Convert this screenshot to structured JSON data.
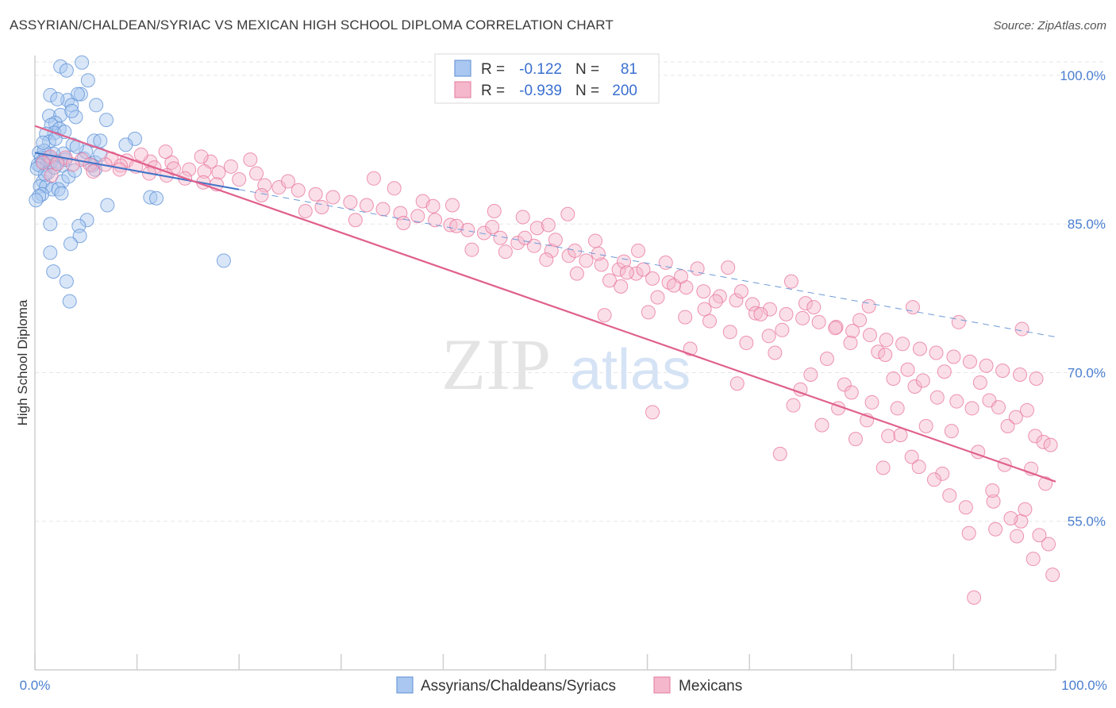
{
  "header": {
    "title": "ASSYRIAN/CHALDEAN/SYRIAC VS MEXICAN HIGH SCHOOL DIPLOMA CORRELATION CHART",
    "source": "Source: ZipAtlas.com"
  },
  "watermark": {
    "zip": "ZIP",
    "atlas": "atlas"
  },
  "colors": {
    "blue": "#5b8fd6",
    "blue_fill": "#a9c7f0",
    "pink": "#e8719a",
    "pink_fill": "#f5b7cb",
    "tick_text": "#4a7fd0"
  },
  "legend": {
    "r_label": "R =",
    "n_label": "N =",
    "rows": [
      {
        "r": "-0.122",
        "n": "81"
      },
      {
        "r": "-0.939",
        "n": "200"
      }
    ]
  },
  "chart_data": {
    "type": "scatter",
    "title": "ASSYRIAN/CHALDEAN/SYRIAC VS MEXICAN HIGH SCHOOL DIPLOMA CORRELATION CHART",
    "xlabel": "",
    "ylabel": "High School Diploma",
    "xlim": [
      0,
      100
    ],
    "ylim": [
      40,
      102
    ],
    "x_tick_labels": [
      "0.0%",
      "100.0%"
    ],
    "y_ticks": [
      {
        "value": 100,
        "label": "100.0%"
      },
      {
        "value": 85,
        "label": "85.0%"
      },
      {
        "value": 70,
        "label": "70.0%"
      },
      {
        "value": 55,
        "label": "55.0%"
      }
    ],
    "series": [
      {
        "name": "Assyrians/Chaldeans/Syriacs",
        "r": -0.122,
        "n": 81,
        "trend": {
          "x0": 0,
          "y0": 92.2,
          "x1": 100,
          "y1": 73.6,
          "solid_until": 20
        },
        "points": [
          [
            4.6,
            101.3
          ],
          [
            2.5,
            100.9
          ],
          [
            3.1,
            100.5
          ],
          [
            5.2,
            99.5
          ],
          [
            4.5,
            98.1
          ],
          [
            1.5,
            98.0
          ],
          [
            3.2,
            97.5
          ],
          [
            4.2,
            98.1
          ],
          [
            3.6,
            97.0
          ],
          [
            2.2,
            97.6
          ],
          [
            6.0,
            97.0
          ],
          [
            1.4,
            95.9
          ],
          [
            2.5,
            96.0
          ],
          [
            2.0,
            95.2
          ],
          [
            4.0,
            95.8
          ],
          [
            3.6,
            96.4
          ],
          [
            1.6,
            95.0
          ],
          [
            7.0,
            95.5
          ],
          [
            2.4,
            94.6
          ],
          [
            1.9,
            94.2
          ],
          [
            1.1,
            94.1
          ],
          [
            1.4,
            93.3
          ],
          [
            3.7,
            93.0
          ],
          [
            9.8,
            93.6
          ],
          [
            5.8,
            93.4
          ],
          [
            6.4,
            93.4
          ],
          [
            8.9,
            93.0
          ],
          [
            2.8,
            92.1
          ],
          [
            1.8,
            92.1
          ],
          [
            0.4,
            92.2
          ],
          [
            0.6,
            91.7
          ],
          [
            1.1,
            91.7
          ],
          [
            1.4,
            91.7
          ],
          [
            0.7,
            91.3
          ],
          [
            1.6,
            91.3
          ],
          [
            2.2,
            91.3
          ],
          [
            0.5,
            90.9
          ],
          [
            1.2,
            90.9
          ],
          [
            2.7,
            90.9
          ],
          [
            5.9,
            91.2
          ],
          [
            5.6,
            90.9
          ],
          [
            5.9,
            90.5
          ],
          [
            0.8,
            89.3
          ],
          [
            2.7,
            89.3
          ],
          [
            0.5,
            88.8
          ],
          [
            1.1,
            88.8
          ],
          [
            1.7,
            88.5
          ],
          [
            2.3,
            88.5
          ],
          [
            0.7,
            88.0
          ],
          [
            0.4,
            87.8
          ],
          [
            0.1,
            87.4
          ],
          [
            11.3,
            87.7
          ],
          [
            11.9,
            87.6
          ],
          [
            7.1,
            86.9
          ],
          [
            5.1,
            85.4
          ],
          [
            1.5,
            85.0
          ],
          [
            4.3,
            84.8
          ],
          [
            4.4,
            83.8
          ],
          [
            3.5,
            83.0
          ],
          [
            1.5,
            82.1
          ],
          [
            18.5,
            81.3
          ],
          [
            1.8,
            80.2
          ],
          [
            3.1,
            79.2
          ],
          [
            3.4,
            77.2
          ],
          [
            0.9,
            92.4
          ],
          [
            2.9,
            94.3
          ],
          [
            1.3,
            90.2
          ],
          [
            4.8,
            91.6
          ],
          [
            3.3,
            89.8
          ],
          [
            0.3,
            91.0
          ],
          [
            6.4,
            92.0
          ],
          [
            2.0,
            93.6
          ],
          [
            3.9,
            90.4
          ],
          [
            1.0,
            90.0
          ],
          [
            5.0,
            92.3
          ],
          [
            0.2,
            90.6
          ],
          [
            2.6,
            88.1
          ],
          [
            4.1,
            92.8
          ],
          [
            1.9,
            90.7
          ],
          [
            0.8,
            93.2
          ],
          [
            3.0,
            91.5
          ]
        ]
      },
      {
        "name": "Mexicans",
        "r": -0.939,
        "n": 200,
        "trend": {
          "x0": 0,
          "y0": 94.9,
          "x1": 100,
          "y1": 59.0
        },
        "points": [
          [
            1.5,
            91.8
          ],
          [
            3.0,
            91.7
          ],
          [
            4.6,
            91.5
          ],
          [
            7.5,
            91.6
          ],
          [
            9.0,
            91.4
          ],
          [
            11.3,
            91.3
          ],
          [
            13.4,
            91.2
          ],
          [
            17.2,
            91.3
          ],
          [
            0.8,
            91.2
          ],
          [
            2.2,
            91.1
          ],
          [
            3.7,
            91.0
          ],
          [
            5.4,
            91.0
          ],
          [
            6.9,
            91.0
          ],
          [
            8.4,
            90.9
          ],
          [
            9.9,
            90.8
          ],
          [
            11.7,
            90.7
          ],
          [
            13.6,
            90.6
          ],
          [
            15.1,
            90.5
          ],
          [
            16.6,
            90.3
          ],
          [
            18.0,
            90.2
          ],
          [
            1.6,
            89.9
          ],
          [
            5.7,
            90.3
          ],
          [
            8.3,
            90.5
          ],
          [
            11.2,
            90.1
          ],
          [
            12.9,
            89.9
          ],
          [
            14.7,
            89.6
          ],
          [
            16.5,
            89.2
          ],
          [
            20.0,
            89.5
          ],
          [
            22.5,
            88.9
          ],
          [
            23.9,
            88.7
          ],
          [
            25.8,
            88.4
          ],
          [
            27.5,
            88.0
          ],
          [
            29.2,
            87.7
          ],
          [
            30.9,
            87.2
          ],
          [
            32.5,
            86.9
          ],
          [
            34.1,
            86.5
          ],
          [
            35.8,
            86.1
          ],
          [
            37.5,
            85.8
          ],
          [
            39.2,
            85.4
          ],
          [
            40.7,
            84.9
          ],
          [
            42.4,
            84.4
          ],
          [
            44.0,
            84.1
          ],
          [
            45.6,
            83.6
          ],
          [
            47.3,
            83.1
          ],
          [
            48.9,
            82.8
          ],
          [
            50.6,
            82.3
          ],
          [
            52.3,
            81.8
          ],
          [
            54.0,
            81.3
          ],
          [
            55.5,
            80.9
          ],
          [
            57.2,
            80.4
          ],
          [
            58.9,
            80.0
          ],
          [
            60.5,
            79.5
          ],
          [
            62.1,
            79.1
          ],
          [
            63.8,
            78.6
          ],
          [
            65.5,
            78.2
          ],
          [
            67.1,
            77.7
          ],
          [
            68.7,
            77.3
          ],
          [
            70.3,
            76.9
          ],
          [
            72.0,
            76.4
          ],
          [
            73.6,
            75.9
          ],
          [
            75.2,
            75.5
          ],
          [
            76.8,
            75.1
          ],
          [
            78.5,
            74.6
          ],
          [
            80.1,
            74.2
          ],
          [
            81.8,
            73.8
          ],
          [
            83.4,
            73.3
          ],
          [
            85.0,
            72.9
          ],
          [
            86.7,
            72.4
          ],
          [
            88.3,
            72.0
          ],
          [
            90.0,
            71.6
          ],
          [
            91.6,
            71.1
          ],
          [
            93.2,
            70.7
          ],
          [
            94.8,
            70.2
          ],
          [
            96.5,
            69.8
          ],
          [
            98.1,
            69.4
          ],
          [
            12.8,
            92.3
          ],
          [
            10.4,
            92.0
          ],
          [
            16.3,
            91.8
          ],
          [
            21.1,
            91.5
          ],
          [
            24.8,
            89.3
          ],
          [
            17.8,
            89.0
          ],
          [
            22.2,
            87.9
          ],
          [
            26.5,
            86.3
          ],
          [
            31.4,
            85.4
          ],
          [
            33.2,
            89.6
          ],
          [
            28.1,
            86.7
          ],
          [
            35.2,
            88.6
          ],
          [
            38.0,
            87.3
          ],
          [
            36.1,
            85.1
          ],
          [
            39.0,
            86.8
          ],
          [
            40.9,
            86.9
          ],
          [
            41.3,
            84.8
          ],
          [
            42.8,
            82.4
          ],
          [
            44.8,
            84.7
          ],
          [
            46.1,
            82.2
          ],
          [
            48.0,
            83.6
          ],
          [
            49.2,
            84.6
          ],
          [
            50.1,
            81.4
          ],
          [
            51.0,
            83.4
          ],
          [
            52.9,
            82.3
          ],
          [
            53.1,
            80.0
          ],
          [
            55.2,
            82.0
          ],
          [
            56.3,
            79.3
          ],
          [
            57.7,
            81.2
          ],
          [
            58.0,
            80.1
          ],
          [
            59.6,
            80.4
          ],
          [
            61.0,
            77.6
          ],
          [
            61.8,
            81.1
          ],
          [
            62.6,
            78.8
          ],
          [
            63.3,
            79.7
          ],
          [
            64.9,
            80.5
          ],
          [
            65.6,
            76.4
          ],
          [
            66.7,
            77.2
          ],
          [
            67.9,
            80.6
          ],
          [
            69.2,
            78.2
          ],
          [
            70.6,
            76.0
          ],
          [
            71.9,
            73.7
          ],
          [
            73.2,
            74.3
          ],
          [
            74.1,
            79.2
          ],
          [
            75.5,
            77.0
          ],
          [
            76.3,
            76.6
          ],
          [
            77.6,
            71.4
          ],
          [
            78.4,
            74.5
          ],
          [
            79.9,
            73.0
          ],
          [
            80.8,
            75.3
          ],
          [
            81.7,
            76.7
          ],
          [
            82.6,
            72.1
          ],
          [
            83.3,
            71.8
          ],
          [
            84.1,
            69.4
          ],
          [
            85.5,
            70.3
          ],
          [
            86.2,
            68.6
          ],
          [
            87.0,
            69.2
          ],
          [
            88.4,
            67.5
          ],
          [
            89.1,
            70.1
          ],
          [
            90.3,
            67.1
          ],
          [
            91.8,
            66.4
          ],
          [
            92.6,
            69.0
          ],
          [
            93.5,
            67.2
          ],
          [
            94.4,
            66.5
          ],
          [
            95.3,
            64.6
          ],
          [
            96.1,
            65.5
          ],
          [
            97.2,
            66.2
          ],
          [
            98.0,
            63.6
          ],
          [
            98.8,
            63.0
          ],
          [
            99.5,
            62.7
          ],
          [
            55.8,
            75.8
          ],
          [
            60.1,
            76.1
          ],
          [
            64.2,
            72.4
          ],
          [
            68.1,
            74.1
          ],
          [
            72.5,
            72.0
          ],
          [
            76.0,
            69.8
          ],
          [
            79.3,
            68.8
          ],
          [
            82.0,
            67.0
          ],
          [
            84.5,
            66.4
          ],
          [
            87.3,
            64.6
          ],
          [
            89.8,
            64.1
          ],
          [
            92.4,
            62.0
          ],
          [
            95.0,
            60.7
          ],
          [
            97.6,
            60.3
          ],
          [
            99.0,
            58.8
          ],
          [
            73.0,
            61.8
          ],
          [
            81.5,
            65.2
          ],
          [
            85.9,
            61.5
          ],
          [
            88.9,
            59.8
          ],
          [
            91.2,
            56.4
          ],
          [
            93.9,
            57.0
          ],
          [
            96.6,
            55.0
          ],
          [
            99.3,
            52.7
          ],
          [
            86.0,
            76.6
          ],
          [
            90.5,
            75.1
          ],
          [
            96.7,
            74.4
          ],
          [
            60.5,
            66.0
          ],
          [
            68.8,
            68.9
          ],
          [
            74.3,
            66.7
          ],
          [
            77.1,
            64.7
          ],
          [
            80.4,
            63.3
          ],
          [
            83.6,
            63.6
          ],
          [
            86.6,
            60.5
          ],
          [
            93.8,
            58.1
          ],
          [
            95.6,
            55.3
          ],
          [
            97.0,
            56.2
          ],
          [
            98.4,
            53.6
          ],
          [
            92.0,
            47.3
          ],
          [
            45.0,
            86.3
          ],
          [
            47.8,
            85.7
          ],
          [
            50.3,
            84.9
          ],
          [
            52.2,
            86.0
          ],
          [
            54.9,
            83.3
          ],
          [
            57.4,
            78.7
          ],
          [
            59.1,
            82.3
          ],
          [
            63.7,
            75.6
          ],
          [
            66.1,
            75.2
          ],
          [
            69.7,
            73.0
          ],
          [
            71.1,
            75.9
          ],
          [
            75.0,
            68.3
          ],
          [
            78.7,
            66.4
          ],
          [
            80.0,
            68.0
          ],
          [
            83.1,
            60.4
          ],
          [
            84.8,
            63.7
          ],
          [
            88.1,
            59.2
          ],
          [
            89.6,
            57.6
          ],
          [
            91.5,
            53.8
          ],
          [
            94.1,
            54.2
          ],
          [
            96.2,
            53.5
          ],
          [
            97.8,
            51.2
          ],
          [
            99.7,
            49.6
          ],
          [
            21.7,
            90.1
          ],
          [
            19.2,
            90.8
          ]
        ]
      }
    ]
  }
}
